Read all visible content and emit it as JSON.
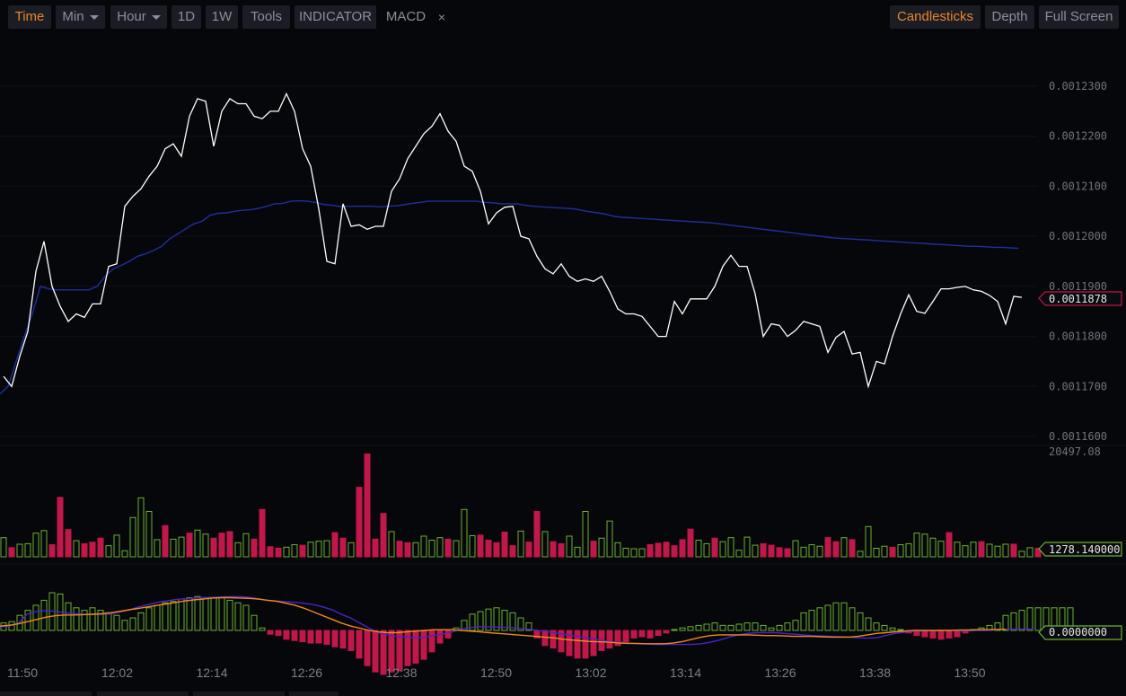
{
  "toolbar": {
    "time": "Time",
    "min": "Min",
    "hour": "Hour",
    "d1": "1D",
    "w1": "1W",
    "tools": "Tools",
    "indicator": "INDICATOR",
    "macd": "MACD",
    "close": "×",
    "candlesticks": "Candlesticks",
    "depth": "Depth",
    "fullscreen": "Full Screen"
  },
  "colors": {
    "price": "#ffffff",
    "ma": "#1f2f9a",
    "vol_up": "#6ab22f",
    "vol_down": "#c0184a",
    "dif": "#4d22c8",
    "dea": "#f08a1a",
    "accent": "#e8862a"
  },
  "tags": {
    "price": "0.0011878",
    "volume": "1278.140000",
    "macd": "0.0000000",
    "volume_max": "20497.08"
  },
  "chart_data": {
    "type": "line",
    "x_labels": [
      "11:50",
      "12:02",
      "12:14",
      "12:26",
      "12:38",
      "12:50",
      "13:02",
      "13:14",
      "13:26",
      "13:38",
      "13:50"
    ],
    "y_ticks": [
      "0.0012300",
      "0.0012200",
      "0.0012100",
      "0.0012000",
      "0.0011900",
      "0.0011800",
      "0.0011700",
      "0.0011600"
    ],
    "ylim": [
      0.00116,
      0.00123
    ],
    "price": [
      0.001172,
      0.00117,
      0.001176,
      0.001181,
      0.001193,
      0.001199,
      0.00119,
      0.001186,
      0.001183,
      0.0011845,
      0.0011838,
      0.0011865,
      0.0011865,
      0.001194,
      0.0011945,
      0.001206,
      0.001208,
      0.0012095,
      0.001212,
      0.001214,
      0.0012175,
      0.0012185,
      0.001216,
      0.001224,
      0.0012275,
      0.001227,
      0.001218,
      0.001225,
      0.0012275,
      0.0012265,
      0.0012265,
      0.001224,
      0.0012235,
      0.001225,
      0.001225,
      0.0012285,
      0.001225,
      0.0012175,
      0.001214,
      0.0012055,
      0.001195,
      0.0011945,
      0.0012065,
      0.001202,
      0.0012023,
      0.0012014,
      0.001202,
      0.001202,
      0.001209,
      0.0012115,
      0.0012155,
      0.001218,
      0.0012205,
      0.001222,
      0.0012245,
      0.001221,
      0.001219,
      0.001214,
      0.001213,
      0.001209,
      0.0012025,
      0.0012047,
      0.0012058,
      0.001206,
      0.0012,
      0.0011995,
      0.001196,
      0.0011935,
      0.0011925,
      0.0011945,
      0.001192,
      0.001191,
      0.0011915,
      0.001191,
      0.001192,
      0.001189,
      0.0011855,
      0.0011845,
      0.0011845,
      0.001184,
      0.001182,
      0.00118,
      0.00118,
      0.001187,
      0.0011845,
      0.0011875,
      0.0011875,
      0.0011875,
      0.00119,
      0.001194,
      0.0011962,
      0.001194,
      0.001194,
      0.0011885,
      0.00118,
      0.0011825,
      0.0011822,
      0.00118,
      0.0011812,
      0.001183,
      0.0011825,
      0.001182,
      0.0011768,
      0.0011798,
      0.001181,
      0.0011765,
      0.0011768,
      0.00117,
      0.001175,
      0.0011745,
      0.00118,
      0.0011845,
      0.0011883,
      0.001185,
      0.0011846,
      0.001187,
      0.0011895,
      0.0011895,
      0.0011898,
      0.00119,
      0.0011893,
      0.001189,
      0.0011882,
      0.001187,
      0.0011825,
      0.001188,
      0.0011878
    ],
    "ma": [
      0.0011685,
      0.00117,
      0.001175,
      0.00118,
      0.0011845,
      0.00119,
      0.0011895,
      0.0011893,
      0.0011893,
      0.0011893,
      0.0011893,
      0.0011893,
      0.00119,
      0.001192,
      0.0011935,
      0.0011942,
      0.001195,
      0.001196,
      0.0011965,
      0.0011972,
      0.001198,
      0.0011995,
      0.0012005,
      0.0012015,
      0.0012025,
      0.001203,
      0.0012042,
      0.0012046,
      0.0012047,
      0.001205,
      0.0012052,
      0.0012053,
      0.0012056,
      0.001206,
      0.0012065,
      0.0012066,
      0.001207,
      0.0012071,
      0.001207,
      0.0012068,
      0.0012064,
      0.0012062,
      0.001206,
      0.001206,
      0.001206,
      0.001206,
      0.001206,
      0.0012059,
      0.001206,
      0.0012061,
      0.0012063,
      0.0012066,
      0.0012068,
      0.001207,
      0.001207,
      0.001207,
      0.001207,
      0.001207,
      0.001207,
      0.001207,
      0.0012068,
      0.0012067,
      0.0012065,
      0.0012065,
      0.0012065,
      0.0012062,
      0.001206,
      0.0012059,
      0.0012058,
      0.0012057,
      0.0012056,
      0.0012055,
      0.0012052,
      0.0012049,
      0.0012047,
      0.0012044,
      0.001204,
      0.0012038,
      0.0012037,
      0.0012036,
      0.0012035,
      0.0012034,
      0.0012033,
      0.0012032,
      0.0012031,
      0.001203,
      0.0012029,
      0.0012028,
      0.0012027,
      0.0012025,
      0.0012023,
      0.0012021,
      0.0012019,
      0.0012017,
      0.0012015,
      0.0012013,
      0.0012011,
      0.0012009,
      0.0012007,
      0.0012005,
      0.0012003,
      0.0012001,
      0.0011999,
      0.0011997,
      0.0011996,
      0.0011995,
      0.0011994,
      0.0011993,
      0.0011992,
      0.0011991,
      0.001199,
      0.0011989,
      0.0011988,
      0.0011987,
      0.0011986,
      0.0011985,
      0.0011984,
      0.0011983,
      0.0011982,
      0.0011981,
      0.001198,
      0.001198,
      0.0011979,
      0.0011978,
      0.0011978,
      0.0011977,
      0.0011976
    ],
    "volume_max": 20497.08,
    "volume": [
      3800,
      1800,
      2500,
      2600,
      4700,
      5200,
      2400,
      11800,
      5400,
      3200,
      2600,
      2900,
      3700,
      2200,
      4300,
      1200,
      7800,
      11700,
      9000,
      3400,
      6200,
      3500,
      3900,
      4700,
      5300,
      4500,
      3700,
      4700,
      5000,
      2800,
      4600,
      3500,
      9400,
      2000,
      1700,
      1900,
      2400,
      2300,
      2900,
      3100,
      3200,
      4800,
      3700,
      2800,
      13800,
      20400,
      3500,
      8600,
      5000,
      3100,
      2800,
      2800,
      4100,
      3300,
      3800,
      3500,
      3200,
      9400,
      4200,
      4300,
      3300,
      2800,
      4900,
      2200,
      5100,
      2900,
      9000,
      5000,
      3000,
      2600,
      4100,
      1900,
      9000,
      3100,
      3700,
      7100,
      2800,
      1700,
      1600,
      1600,
      2400,
      2700,
      2900,
      2200,
      3400,
      5500,
      3300,
      2600,
      3700,
      3000,
      3800,
      1300,
      3900,
      2300,
      2600,
      2300,
      1800,
      1600,
      3200,
      1900,
      2400,
      2100,
      3800,
      3000,
      3800,
      3400,
      1100,
      6000,
      1700,
      2100,
      1900,
      2400,
      2600,
      4700,
      4500,
      3700,
      3100,
      4800,
      2900,
      2200,
      2900,
      3000,
      2500,
      2100,
      2500,
      2500,
      1100,
      1800,
      1700
    ],
    "volume_dir": [
      1,
      -1,
      1,
      1,
      1,
      1,
      -1,
      -1,
      -1,
      1,
      -1,
      -1,
      -1,
      1,
      1,
      1,
      1,
      1,
      1,
      1,
      -1,
      1,
      1,
      -1,
      1,
      1,
      -1,
      -1,
      -1,
      1,
      1,
      -1,
      -1,
      -1,
      -1,
      1,
      1,
      -1,
      1,
      1,
      1,
      -1,
      -1,
      1,
      -1,
      -1,
      -1,
      -1,
      1,
      -1,
      -1,
      1,
      1,
      1,
      1,
      -1,
      1,
      1,
      1,
      -1,
      -1,
      -1,
      -1,
      -1,
      1,
      -1,
      -1,
      1,
      -1,
      -1,
      1,
      1,
      1,
      -1,
      1,
      1,
      1,
      1,
      1,
      1,
      -1,
      -1,
      -1,
      -1,
      -1,
      -1,
      1,
      1,
      -1,
      1,
      1,
      1,
      1,
      1,
      -1,
      -1,
      -1,
      -1,
      1,
      1,
      1,
      1,
      -1,
      -1,
      1,
      -1,
      1,
      1,
      1,
      1,
      -1,
      1,
      1,
      1,
      1,
      1,
      1,
      -1,
      1,
      1,
      1,
      -1,
      1,
      1,
      1,
      -1,
      1,
      1,
      -1,
      1,
      1
    ],
    "macd_hist": [
      300,
      350,
      600,
      800,
      1000,
      1200,
      1500,
      1450,
      1100,
      900,
      800,
      900,
      800,
      700,
      600,
      400,
      500,
      700,
      900,
      1000,
      1100,
      1150,
      1250,
      1300,
      1350,
      1300,
      1300,
      1300,
      1200,
      1100,
      1000,
      600,
      100,
      -150,
      -200,
      -350,
      -400,
      -450,
      -500,
      -500,
      -550,
      -650,
      -700,
      -800,
      -1100,
      -1400,
      -1650,
      -1750,
      -1650,
      -1600,
      -1400,
      -1300,
      -1150,
      -850,
      -500,
      -300,
      100,
      400,
      650,
      750,
      850,
      900,
      800,
      700,
      500,
      300,
      -300,
      -600,
      -700,
      -850,
      -1000,
      -1100,
      -1100,
      -1000,
      -800,
      -700,
      -600,
      -450,
      -300,
      -250,
      -300,
      -200,
      -100,
      0,
      100,
      150,
      200,
      250,
      300,
      200,
      200,
      250,
      300,
      300,
      200,
      100,
      200,
      300,
      400,
      700,
      800,
      900,
      1000,
      1100,
      1100,
      900,
      700,
      500,
      300,
      200,
      100,
      0,
      -100,
      -200,
      -250,
      -300,
      -350,
      -300,
      -250,
      -100,
      0,
      100,
      200,
      300,
      600,
      700,
      800,
      900,
      900,
      900,
      900,
      900,
      900
    ],
    "dif": [
      10,
      12,
      20,
      45,
      52,
      54,
      52,
      48,
      46,
      44,
      44,
      44,
      45,
      50,
      56,
      64,
      70,
      76,
      80,
      84,
      86,
      88,
      89,
      90,
      91,
      92,
      92,
      90,
      86,
      82,
      80,
      78,
      76,
      74,
      70,
      64,
      56,
      44,
      34,
      20,
      6,
      -6,
      -12,
      -16,
      -18,
      -20,
      -18,
      -14,
      -10,
      -4,
      4,
      8,
      10,
      10,
      9,
      8,
      6,
      4,
      1,
      -2,
      -6,
      -10,
      -14,
      -18,
      -22,
      -26,
      -30,
      -32,
      -34,
      -36,
      -37,
      -38,
      -38,
      -38,
      -38,
      -38,
      -36,
      -32,
      -26,
      -18,
      -12,
      -8,
      -6,
      -6,
      -6,
      -8,
      -10,
      -12,
      -14,
      -15,
      -16,
      -17,
      -18,
      -20,
      -21,
      -20,
      -14,
      -8,
      -5,
      -2,
      -1,
      -1,
      0,
      0,
      -1,
      -1,
      0,
      0,
      2,
      3,
      4,
      4,
      4
    ],
    "dea": [
      12,
      14,
      18,
      24,
      30,
      36,
      40,
      42,
      42,
      43,
      44,
      45,
      48,
      52,
      56,
      60,
      64,
      68,
      72,
      76,
      80,
      83,
      85,
      88,
      89,
      89,
      88,
      87,
      85,
      82,
      79,
      74,
      68,
      60,
      50,
      40,
      30,
      20,
      12,
      6,
      0,
      -4,
      -6,
      -6,
      -4,
      -2,
      0,
      2,
      2,
      2,
      0,
      -2,
      -4,
      -6,
      -8,
      -10,
      -12,
      -14,
      -16,
      -18,
      -20,
      -24,
      -26,
      -28,
      -30,
      -31,
      -32,
      -34,
      -35,
      -35,
      -36,
      -36,
      -36,
      -34,
      -30,
      -24,
      -18,
      -14,
      -12,
      -12,
      -12,
      -12,
      -13,
      -14,
      -14,
      -15,
      -16,
      -16,
      -16,
      -17,
      -18,
      -18,
      -18,
      -16,
      -12,
      -8,
      -6,
      -4,
      -2,
      0,
      0,
      0,
      0,
      0,
      1,
      1,
      2,
      2,
      3,
      3
    ]
  }
}
